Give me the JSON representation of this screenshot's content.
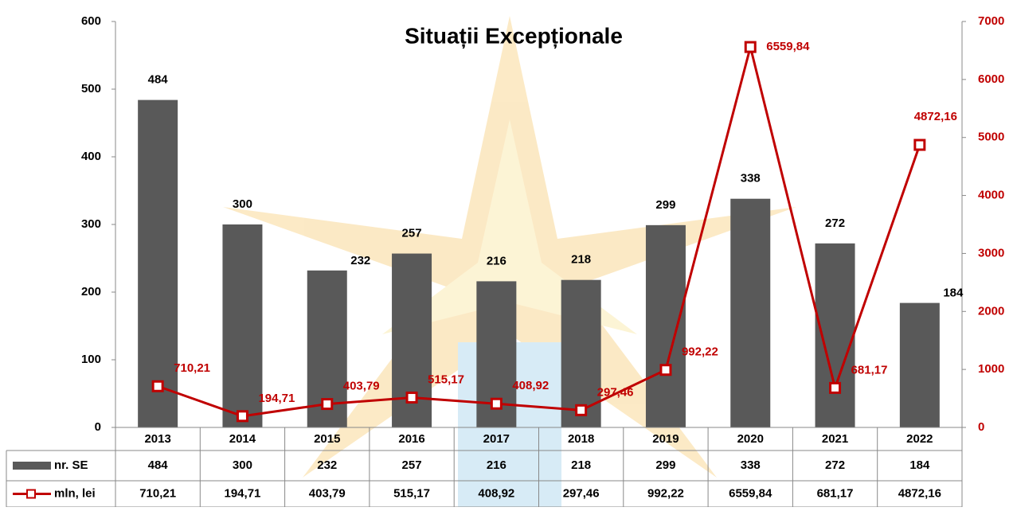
{
  "chart_data": {
    "type": "bar",
    "title": "Situații Excepționale",
    "categories": [
      "2013",
      "2014",
      "2015",
      "2016",
      "2017",
      "2018",
      "2019",
      "2020",
      "2021",
      "2022"
    ],
    "series": [
      {
        "name": "nr. SE",
        "type": "bar",
        "color": "#595959",
        "values": [
          484,
          300,
          232,
          257,
          216,
          218,
          299,
          338,
          272,
          184
        ]
      },
      {
        "name": "mln, lei",
        "type": "line",
        "axis": "y2",
        "color": "#c00000",
        "values": [
          710.21,
          194.71,
          403.79,
          515.17,
          408.92,
          297.46,
          992.22,
          6559.84,
          681.17,
          4872.16
        ],
        "value_labels": [
          "710,21",
          "194,71",
          "403,79",
          "515,17",
          "408,92",
          "297,46",
          "992,22",
          "6559,84",
          "681,17",
          "4872,16"
        ]
      }
    ],
    "ylim": [
      0,
      600
    ],
    "yticks": [
      0,
      100,
      200,
      300,
      400,
      500,
      600
    ],
    "y2lim": [
      0,
      7000
    ],
    "y2ticks": [
      0,
      1000,
      2000,
      3000,
      4000,
      5000,
      6000,
      7000
    ],
    "data_table": true
  }
}
